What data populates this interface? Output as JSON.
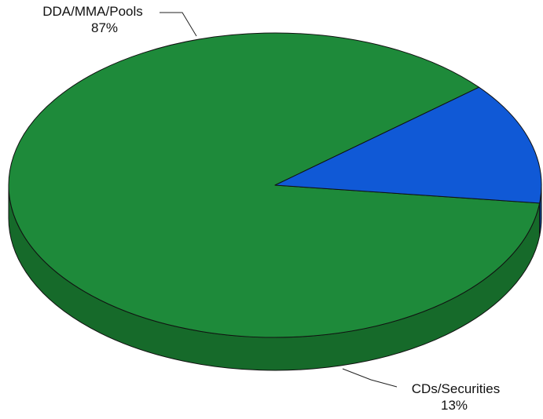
{
  "chart_data": {
    "type": "pie",
    "title": "",
    "slices": [
      {
        "label": "DDA/MMA/Pools",
        "value": 87,
        "value_label": "87%",
        "color": "#1e8a3a",
        "side_color": "#166a2a"
      },
      {
        "label": "CDs/Securities",
        "value": 13,
        "value_label": "13%",
        "color": "#1059d6",
        "side_color": "#0b3f8e"
      }
    ],
    "legend": "none",
    "style": "3d"
  }
}
